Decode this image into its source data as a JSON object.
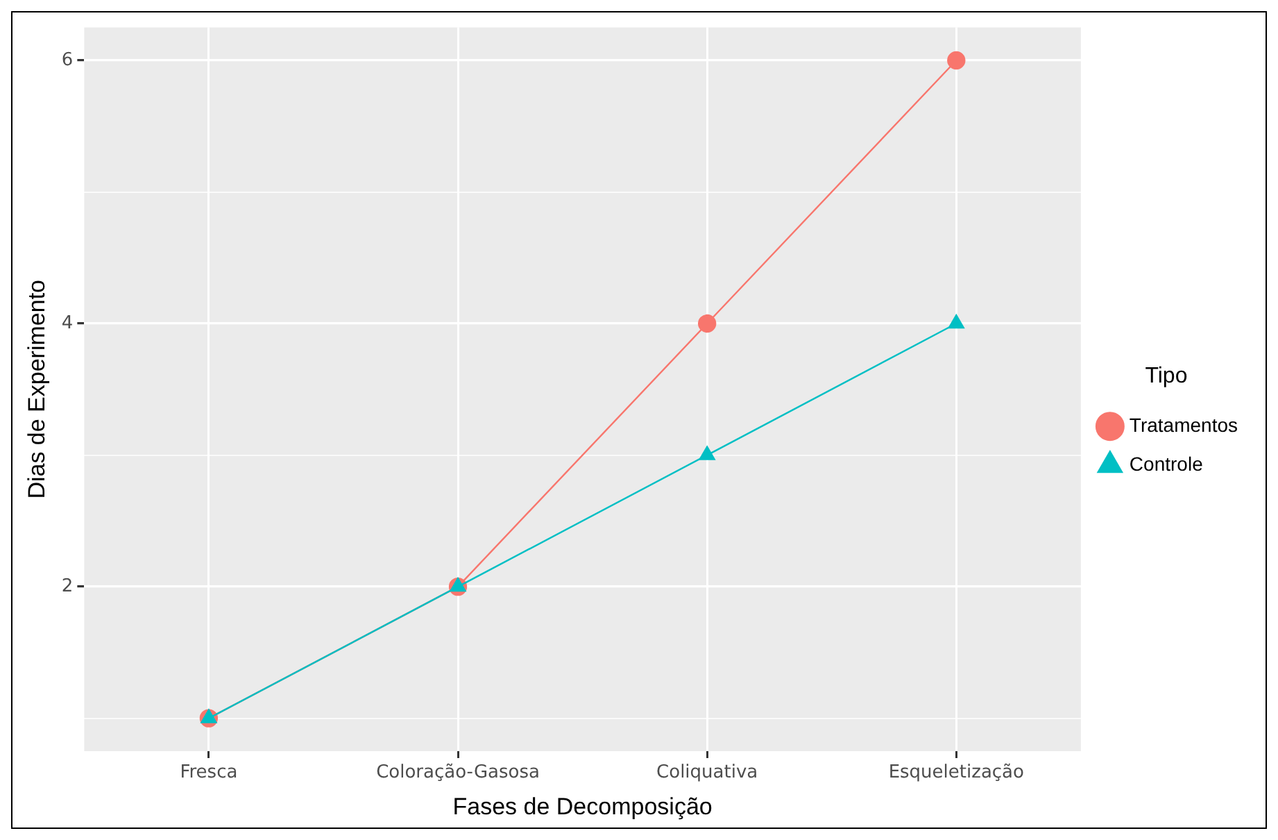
{
  "chart_data": {
    "type": "line",
    "xlabel": "Fases de Decomposição",
    "ylabel": "Dias de Experimento",
    "legend_title": "Tipo",
    "categories": [
      "Fresca",
      "Coloração-Gasosa",
      "Coliquativa",
      "Esqueletização"
    ],
    "series": [
      {
        "name": "Tratamentos",
        "color": "#f8766d",
        "marker": "circle",
        "values": [
          1,
          2,
          4,
          6
        ]
      },
      {
        "name": "Controle",
        "color": "#00bfc4",
        "marker": "triangle",
        "values": [
          1,
          2,
          3,
          4
        ]
      }
    ],
    "ylim": [
      0.75,
      6.25
    ],
    "yticks": [
      {
        "value": 1,
        "label": null
      },
      2,
      {
        "value": 3,
        "label": null
      },
      4,
      {
        "value": 5,
        "label": null
      },
      6
    ],
    "grid": true,
    "legend": "right",
    "line_style": "solid"
  }
}
